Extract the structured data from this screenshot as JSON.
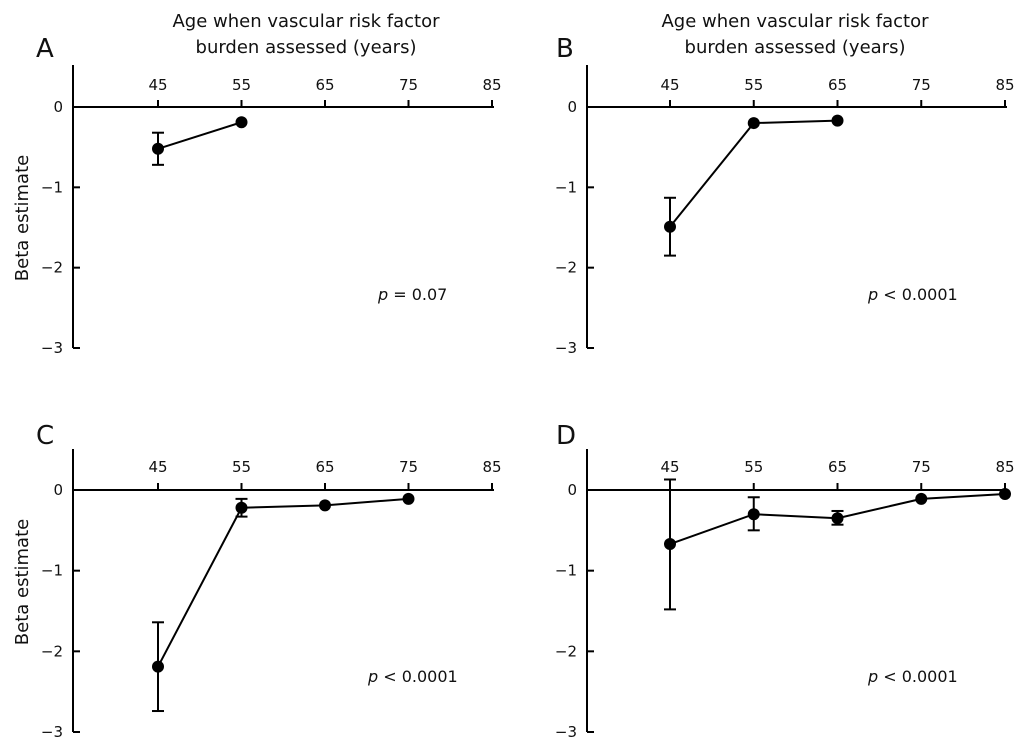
{
  "chart_data": [
    {
      "type": "line",
      "panel": "A",
      "xlabel_lines": [
        "Age when vascular risk factor",
        "burden assessed (years)"
      ],
      "ylabel": "",
      "xticks": [
        45,
        55,
        65,
        75,
        85
      ],
      "yticks": [
        0,
        -1,
        -2,
        -3
      ],
      "xlim": [
        45,
        85
      ],
      "ylim": [
        -3,
        0
      ],
      "points": [
        {
          "x": 45,
          "y": -0.52,
          "lo": -0.72,
          "hi": -0.32
        },
        {
          "x": 55,
          "y": -0.19
        }
      ],
      "p_symbol": "p",
      "p_text": " = 0.07"
    },
    {
      "type": "line",
      "panel": "B",
      "xlabel_lines": [
        "Age when vascular risk factor",
        "burden assessed (years)"
      ],
      "ylabel": "",
      "xticks": [
        45,
        55,
        65,
        75,
        85
      ],
      "yticks": [
        0,
        -1,
        -2,
        -3
      ],
      "xlim": [
        45,
        85
      ],
      "ylim": [
        -3,
        0
      ],
      "points": [
        {
          "x": 45,
          "y": -1.49,
          "lo": -1.85,
          "hi": -1.13
        },
        {
          "x": 55,
          "y": -0.2
        },
        {
          "x": 65,
          "y": -0.17
        }
      ],
      "p_symbol": "p",
      "p_text": " < 0.0001"
    },
    {
      "type": "line",
      "panel": "C",
      "xlabel_lines": [],
      "ylabel": "Beta estimate",
      "xticks": [
        45,
        55,
        65,
        75,
        85
      ],
      "yticks": [
        0,
        -1,
        -2,
        -3
      ],
      "xlim": [
        45,
        85
      ],
      "ylim": [
        -3,
        0
      ],
      "points": [
        {
          "x": 45,
          "y": -2.19,
          "lo": -2.74,
          "hi": -1.64
        },
        {
          "x": 55,
          "y": -0.22,
          "lo": -0.33,
          "hi": -0.11
        },
        {
          "x": 65,
          "y": -0.19
        },
        {
          "x": 75,
          "y": -0.11
        }
      ],
      "p_symbol": "p",
      "p_text": " < 0.0001"
    },
    {
      "type": "line",
      "panel": "D",
      "xlabel_lines": [],
      "ylabel": "",
      "xticks": [
        45,
        55,
        65,
        75,
        85
      ],
      "yticks": [
        0,
        -1,
        -2,
        -3
      ],
      "xlim": [
        45,
        85
      ],
      "ylim": [
        -3,
        0
      ],
      "points": [
        {
          "x": 45,
          "y": -0.67,
          "lo": -1.48,
          "hi": 0.13
        },
        {
          "x": 55,
          "y": -0.3,
          "lo": -0.5,
          "hi": -0.09
        },
        {
          "x": 65,
          "y": -0.35,
          "lo": -0.43,
          "hi": -0.26
        },
        {
          "x": 75,
          "y": -0.11
        },
        {
          "x": 85,
          "y": -0.05
        }
      ],
      "p_symbol": "p",
      "p_text": " < 0.0001"
    }
  ],
  "shared_ylabel": "Beta estimate",
  "colors": {
    "line": "#000000",
    "marker": "#000000"
  }
}
